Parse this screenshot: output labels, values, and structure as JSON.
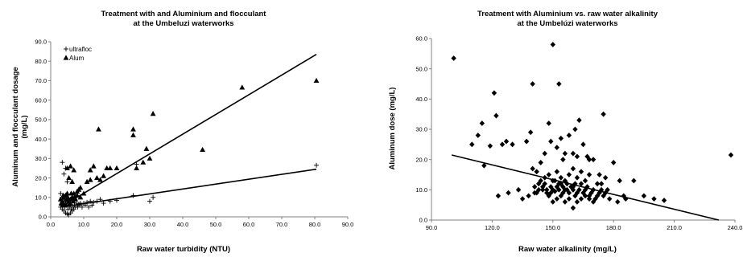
{
  "chart_data": [
    {
      "type": "scatter",
      "title": "Treatment with and Aluminium and flocculant",
      "subtitle": "at the Umbeluzi waterworks",
      "xlabel": "Raw water turbidity (NTU)",
      "ylabel": "Aluminum and flocculant dosage",
      "ylabel_unit": "(mg/L)",
      "xlim": [
        0,
        90
      ],
      "ylim": [
        0,
        90
      ],
      "x_ticks": [
        0,
        10,
        20,
        30,
        40,
        50,
        60,
        70,
        80,
        90
      ],
      "y_ticks": [
        0,
        10,
        20,
        30,
        40,
        50,
        60,
        70,
        80,
        90
      ],
      "x_tick_labels": [
        "0.0",
        "10.0",
        "20.0",
        "30.0",
        "40.0",
        "50.0",
        "60.0",
        "70.0",
        "80.0",
        "90.0"
      ],
      "y_tick_labels": [
        "0.0",
        "10.0",
        "20.0",
        "30.0",
        "40.0",
        "50.0",
        "60.0",
        "70.0",
        "80.0",
        "90.0"
      ],
      "grid": false,
      "legend_position": "top-left",
      "series": [
        {
          "name": "ultrafloc",
          "marker": "plus",
          "points": [
            [
              3.5,
              28
            ],
            [
              4,
              22
            ],
            [
              4.5,
              25
            ],
            [
              5,
              18
            ],
            [
              3,
              12
            ],
            [
              3.5,
              10
            ],
            [
              4,
              9
            ],
            [
              4.5,
              8
            ],
            [
              5,
              7.5
            ],
            [
              5.5,
              7
            ],
            [
              6,
              6.5
            ],
            [
              3,
              5
            ],
            [
              3.5,
              4
            ],
            [
              4,
              3
            ],
            [
              4.5,
              2
            ],
            [
              5,
              1.5
            ],
            [
              5.5,
              1
            ],
            [
              6,
              2
            ],
            [
              6.5,
              3
            ],
            [
              7,
              4
            ],
            [
              7.5,
              5
            ],
            [
              8,
              6
            ],
            [
              8.5,
              6.5
            ],
            [
              9,
              7
            ],
            [
              10,
              7
            ],
            [
              11,
              7.5
            ],
            [
              12,
              8
            ],
            [
              13,
              7.5
            ],
            [
              14,
              8
            ],
            [
              15,
              9
            ],
            [
              16,
              7
            ],
            [
              18,
              8
            ],
            [
              20,
              8.5
            ],
            [
              25,
              11
            ],
            [
              26,
              27
            ],
            [
              30,
              8
            ],
            [
              31,
              10
            ],
            [
              3.2,
              6
            ],
            [
              3.8,
              7
            ],
            [
              4.2,
              5
            ],
            [
              4.8,
              6
            ],
            [
              5.2,
              4
            ],
            [
              5.8,
              5
            ],
            [
              6.2,
              4
            ],
            [
              6.8,
              5
            ],
            [
              7.2,
              6
            ],
            [
              7.8,
              7
            ],
            [
              8.2,
              5
            ],
            [
              8.8,
              6
            ],
            [
              9.5,
              5
            ],
            [
              10.5,
              6
            ],
            [
              11.5,
              5
            ],
            [
              12.5,
              6
            ],
            [
              80.5,
              26.5
            ]
          ],
          "trend": [
            [
              3,
              5
            ],
            [
              80.5,
              24.5
            ]
          ]
        },
        {
          "name": "Alum",
          "marker": "triangle",
          "points": [
            [
              3,
              9
            ],
            [
              3.5,
              8
            ],
            [
              4,
              10
            ],
            [
              4.5,
              11
            ],
            [
              5,
              12
            ],
            [
              5.5,
              8
            ],
            [
              6,
              9
            ],
            [
              6.5,
              10
            ],
            [
              7,
              12
            ],
            [
              7.5,
              9
            ],
            [
              8,
              11
            ],
            [
              8.5,
              14
            ],
            [
              9,
              10
            ],
            [
              3.2,
              7
            ],
            [
              3.8,
              11
            ],
            [
              4.2,
              6
            ],
            [
              4.8,
              9
            ],
            [
              5.2,
              10
            ],
            [
              5.8,
              7
            ],
            [
              6.2,
              12
            ],
            [
              6.8,
              8
            ],
            [
              7.2,
              10
            ],
            [
              5,
              25
            ],
            [
              6,
              26
            ],
            [
              7,
              24
            ],
            [
              5.5,
              20
            ],
            [
              6.5,
              18
            ],
            [
              8,
              13
            ],
            [
              9,
              15
            ],
            [
              10,
              12
            ],
            [
              11,
              18
            ],
            [
              12,
              19
            ],
            [
              12,
              24
            ],
            [
              13,
              26
            ],
            [
              14,
              20
            ],
            [
              14.5,
              45
            ],
            [
              15,
              19
            ],
            [
              16,
              21
            ],
            [
              17,
              25
            ],
            [
              18,
              25
            ],
            [
              20,
              25
            ],
            [
              25,
              45
            ],
            [
              25,
              42
            ],
            [
              26,
              25
            ],
            [
              28,
              28
            ],
            [
              29,
              35
            ],
            [
              30,
              30
            ],
            [
              31,
              53
            ],
            [
              46,
              34.5
            ],
            [
              58,
              66.5
            ],
            [
              80.5,
              70
            ]
          ],
          "trend": [
            [
              3,
              5
            ],
            [
              80.5,
              83.5
            ]
          ]
        }
      ]
    },
    {
      "type": "scatter",
      "title": "Treatment with Aluminium vs. raw water alkalinity",
      "subtitle": "at the Umbelúzi waterworks",
      "xlabel": "Raw water alkalinity (mg/L)",
      "ylabel": "Aluminum dose (mg/L)",
      "xlim": [
        90,
        240
      ],
      "ylim": [
        0,
        60
      ],
      "x_ticks": [
        90,
        120,
        150,
        180,
        210,
        240
      ],
      "y_ticks": [
        0,
        10,
        20,
        30,
        40,
        50,
        60
      ],
      "x_tick_labels": [
        "90.0",
        "120.0",
        "150.0",
        "180.0",
        "210.0",
        "240.0"
      ],
      "y_tick_labels": [
        "0.0",
        "10.0",
        "20.0",
        "30.0",
        "40.0",
        "50.0",
        "60.0"
      ],
      "grid": false,
      "series": [
        {
          "marker": "diamond",
          "points": [
            [
              101,
              53.5
            ],
            [
              110,
              25
            ],
            [
              113,
              28
            ],
            [
              115,
              32
            ],
            [
              116,
              18
            ],
            [
              119,
              24.5
            ],
            [
              121,
              42
            ],
            [
              122,
              34.5
            ],
            [
              125,
              25
            ],
            [
              127,
              26
            ],
            [
              130,
              25
            ],
            [
              137,
              26
            ],
            [
              139,
              29
            ],
            [
              140,
              45
            ],
            [
              144,
              19
            ],
            [
              146,
              22
            ],
            [
              148,
              32
            ],
            [
              149,
              26
            ],
            [
              150,
              58
            ],
            [
              152,
              24
            ],
            [
              153,
              45
            ],
            [
              154,
              27
            ],
            [
              155,
              20
            ],
            [
              156,
              22
            ],
            [
              158,
              28
            ],
            [
              160,
              22
            ],
            [
              161,
              30
            ],
            [
              162,
              21
            ],
            [
              163,
              33
            ],
            [
              165,
              25
            ],
            [
              167,
              21
            ],
            [
              168,
              20
            ],
            [
              170,
              20
            ],
            [
              173,
              15
            ],
            [
              175,
              35
            ],
            [
              177,
              10
            ],
            [
              180,
              19
            ],
            [
              183,
              13
            ],
            [
              185,
              8
            ],
            [
              190,
              13
            ],
            [
              195,
              8
            ],
            [
              200,
              7
            ],
            [
              205,
              6.5
            ],
            [
              238,
              21.5
            ],
            [
              123,
              8
            ],
            [
              128,
              9
            ],
            [
              133,
              10
            ],
            [
              135,
              7
            ],
            [
              138,
              8
            ],
            [
              141,
              11
            ],
            [
              142,
              9
            ],
            [
              143,
              12
            ],
            [
              145,
              10
            ],
            [
              147,
              9
            ],
            [
              149,
              11
            ],
            [
              150,
              10
            ],
            [
              151,
              9.5
            ],
            [
              152,
              11
            ],
            [
              153,
              10
            ],
            [
              154,
              8
            ],
            [
              155,
              9
            ],
            [
              156,
              10
            ],
            [
              157,
              12
            ],
            [
              158,
              9
            ],
            [
              159,
              11
            ],
            [
              160,
              10
            ],
            [
              161,
              8
            ],
            [
              162,
              9
            ],
            [
              163,
              10
            ],
            [
              164,
              12
            ],
            [
              165,
              9
            ],
            [
              166,
              10
            ],
            [
              167,
              11
            ],
            [
              168,
              8
            ],
            [
              169,
              9
            ],
            [
              170,
              10
            ],
            [
              171,
              7
            ],
            [
              172,
              8
            ],
            [
              173,
              9
            ],
            [
              174,
              10
            ],
            [
              175,
              8
            ],
            [
              176,
              9
            ],
            [
              178,
              7
            ],
            [
              182,
              6
            ],
            [
              186,
              7
            ],
            [
              146,
              14
            ],
            [
              148,
              15
            ],
            [
              150,
              13
            ],
            [
              152,
              16
            ],
            [
              154,
              14
            ],
            [
              156,
              13
            ],
            [
              158,
              15
            ],
            [
              160,
              17
            ],
            [
              162,
              14
            ],
            [
              164,
              16
            ],
            [
              166,
              13
            ],
            [
              168,
              15
            ],
            [
              140,
              17
            ],
            [
              142,
              16
            ],
            [
              144,
              13
            ],
            [
              146,
              12
            ],
            [
              148,
              8
            ],
            [
              150,
              6
            ],
            [
              152,
              7
            ],
            [
              154,
              12
            ],
            [
              156,
              6
            ],
            [
              158,
              7
            ],
            [
              160,
              4
            ],
            [
              162,
              6
            ],
            [
              164,
              7
            ],
            [
              166,
              8
            ],
            [
              168,
              7
            ],
            [
              170,
              6
            ],
            [
              172,
              12
            ],
            [
              174,
              12
            ],
            [
              176,
              14
            ],
            [
              160,
              11
            ],
            [
              161,
              12
            ],
            [
              157,
              10
            ],
            [
              155,
              11
            ],
            [
              153,
              12
            ],
            [
              151,
              13
            ],
            [
              149,
              9
            ],
            [
              147,
              10
            ],
            [
              145,
              11
            ],
            [
              143,
              10
            ],
            [
              141,
              9
            ]
          ],
          "trend": [
            [
              100,
              21.5
            ],
            [
              232,
              0
            ]
          ]
        }
      ]
    }
  ]
}
